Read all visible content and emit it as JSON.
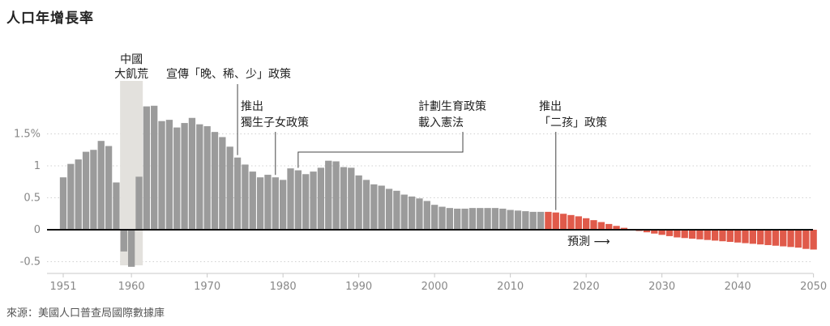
{
  "title": "人口年增長率",
  "source": "來源：美國人口普查局國際數據庫",
  "chart_data": {
    "type": "bar",
    "title": "人口年增長率",
    "xlabel": "",
    "ylabel": "",
    "xlim": [
      1951,
      2050
    ],
    "ylim": [
      -0.55,
      1.95
    ],
    "y_ticks": [
      {
        "value": 1.5,
        "label": "1.5%"
      },
      {
        "value": 1,
        "label": "1"
      },
      {
        "value": 0.5,
        "label": "0.5"
      },
      {
        "value": 0,
        "label": "0"
      },
      {
        "value": -0.5,
        "label": "-0.5"
      }
    ],
    "x_ticks": [
      1951,
      1960,
      1970,
      1980,
      1990,
      2000,
      2010,
      2020,
      2030,
      2040,
      2050
    ],
    "grid": "horizontal dotted",
    "shaded_region": {
      "start": 1959,
      "end": 1961,
      "label_lines": [
        "中國",
        "大飢荒"
      ]
    },
    "series": [
      {
        "name": "",
        "color": "#9b9b9b",
        "x": [
          1951,
          1952,
          1953,
          1954,
          1955,
          1956,
          1957,
          1958,
          1959,
          1960,
          1961,
          1962,
          1963,
          1964,
          1965,
          1966,
          1967,
          1968,
          1969,
          1970,
          1971,
          1972,
          1973,
          1974,
          1975,
          1976,
          1977,
          1978,
          1979,
          1980,
          1981,
          1982,
          1983,
          1984,
          1985,
          1986,
          1987,
          1988,
          1989,
          1990,
          1991,
          1992,
          1993,
          1994,
          1995,
          1996,
          1997,
          1998,
          1999,
          2000,
          2001,
          2002,
          2003,
          2004,
          2005,
          2006,
          2007,
          2008,
          2009,
          2010,
          2011,
          2012,
          2013,
          2014
        ],
        "values": [
          0.82,
          1.03,
          1.1,
          1.22,
          1.25,
          1.39,
          1.31,
          0.74,
          -0.34,
          -0.58,
          0.83,
          1.93,
          1.94,
          1.7,
          1.72,
          1.6,
          1.67,
          1.75,
          1.65,
          1.62,
          1.53,
          1.45,
          1.3,
          1.13,
          1.02,
          0.91,
          0.82,
          0.86,
          0.82,
          0.78,
          0.96,
          0.93,
          0.87,
          0.91,
          0.97,
          1.08,
          1.07,
          0.98,
          0.97,
          0.85,
          0.78,
          0.71,
          0.69,
          0.64,
          0.61,
          0.55,
          0.52,
          0.49,
          0.45,
          0.39,
          0.36,
          0.34,
          0.33,
          0.33,
          0.34,
          0.34,
          0.34,
          0.34,
          0.33,
          0.31,
          0.3,
          0.29,
          0.28,
          0.28
        ]
      },
      {
        "name": "預測",
        "color": "#e05a4a",
        "x": [
          2015,
          2016,
          2017,
          2018,
          2019,
          2020,
          2021,
          2022,
          2023,
          2024,
          2025,
          2026,
          2027,
          2028,
          2029,
          2030,
          2031,
          2032,
          2033,
          2034,
          2035,
          2036,
          2037,
          2038,
          2039,
          2040,
          2041,
          2042,
          2043,
          2044,
          2045,
          2046,
          2047,
          2048,
          2049,
          2050
        ],
        "values": [
          0.28,
          0.27,
          0.25,
          0.23,
          0.21,
          0.18,
          0.15,
          0.12,
          0.09,
          0.06,
          0.03,
          0.0,
          -0.02,
          -0.04,
          -0.06,
          -0.08,
          -0.1,
          -0.12,
          -0.13,
          -0.14,
          -0.15,
          -0.16,
          -0.17,
          -0.18,
          -0.19,
          -0.2,
          -0.21,
          -0.22,
          -0.23,
          -0.24,
          -0.25,
          -0.26,
          -0.27,
          -0.28,
          -0.3,
          -0.31
        ]
      }
    ],
    "annotations": [
      {
        "year": 1974,
        "lines": [
          "宣傳「晚、稀、少」政策"
        ]
      },
      {
        "year": 1979,
        "lines": [
          "推出",
          "獨生子女政策"
        ]
      },
      {
        "year": 1982,
        "lines": [
          "計劃生育政策",
          "載入憲法"
        ]
      },
      {
        "year": 2016,
        "lines": [
          "推出",
          "「二孩」政策"
        ]
      }
    ],
    "forecast_label": "預測 ⟶"
  }
}
